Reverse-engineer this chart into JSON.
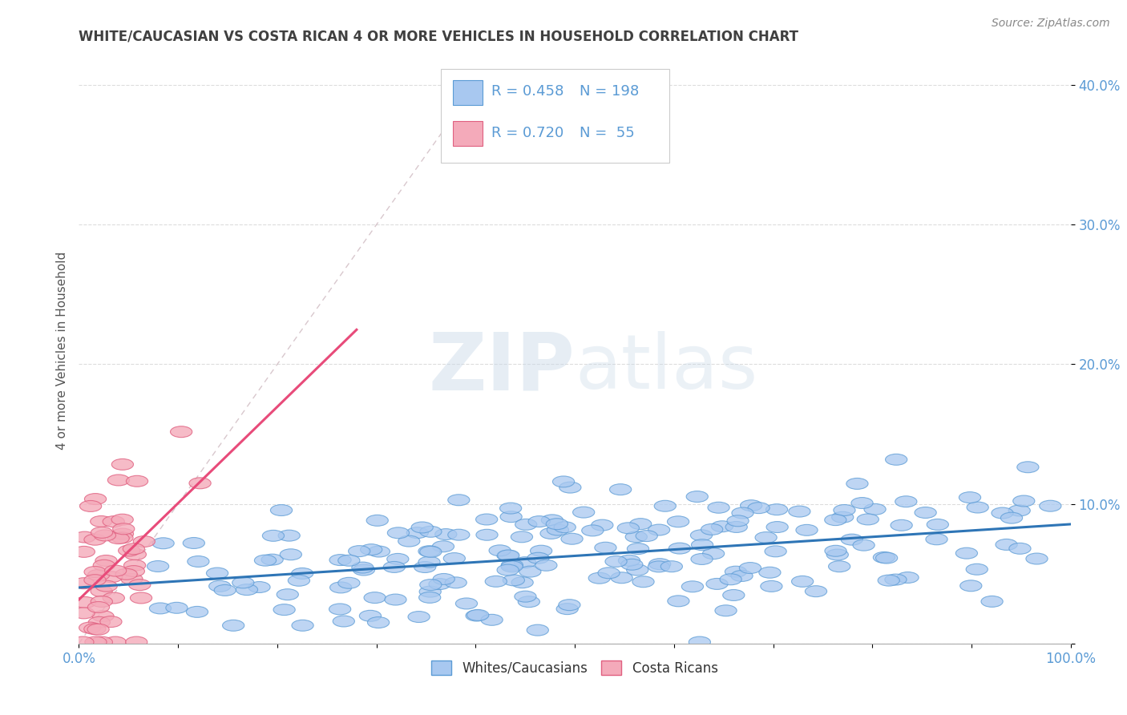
{
  "title": "WHITE/CAUCASIAN VS COSTA RICAN 4 OR MORE VEHICLES IN HOUSEHOLD CORRELATION CHART",
  "source": "Source: ZipAtlas.com",
  "ylabel": "4 or more Vehicles in Household",
  "xlim": [
    0,
    1
  ],
  "ylim": [
    0,
    0.42
  ],
  "x_ticks": [
    0.0,
    0.1,
    0.2,
    0.3,
    0.4,
    0.5,
    0.6,
    0.7,
    0.8,
    0.9,
    1.0
  ],
  "x_tick_labels": [
    "0.0%",
    "",
    "",
    "",
    "",
    "",
    "",
    "",
    "",
    "",
    "100.0%"
  ],
  "y_ticks": [
    0.0,
    0.1,
    0.2,
    0.3,
    0.4
  ],
  "y_tick_labels": [
    "",
    "10.0%",
    "20.0%",
    "30.0%",
    "40.0%"
  ],
  "blue_color": "#A8C8F0",
  "pink_color": "#F4AABA",
  "blue_edge_color": "#5B9BD5",
  "pink_edge_color": "#E06080",
  "blue_line_color": "#2E75B6",
  "pink_line_color": "#E84B7A",
  "diag_line_color": "#C8B0B8",
  "legend_R_blue": "R = 0.458",
  "legend_N_blue": "N = 198",
  "legend_R_pink": "R = 0.720",
  "legend_N_pink": "N =  55",
  "stat_color": "#5B9BD5",
  "title_color": "#404040",
  "axis_tick_color": "#5B9BD5",
  "watermark_color": "#C8D8E8",
  "blue_seed": 42,
  "pink_seed": 7,
  "N_blue": 198,
  "N_pink": 55,
  "blue_R": 0.458,
  "pink_R": 0.72
}
